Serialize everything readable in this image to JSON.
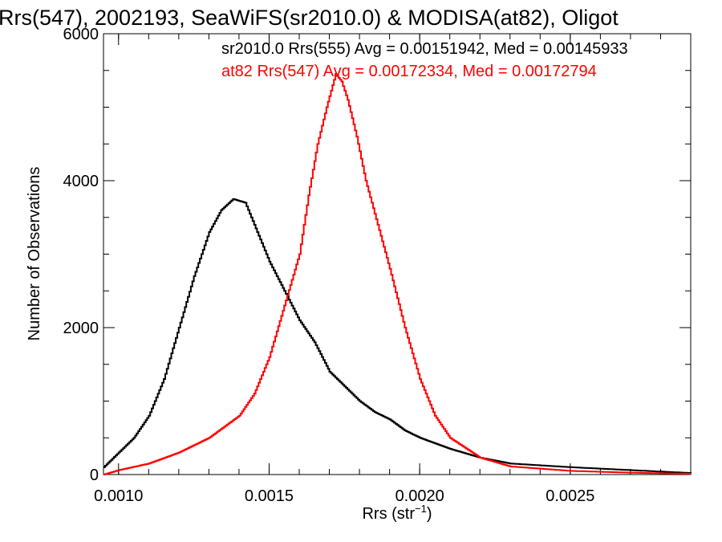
{
  "chart_data": {
    "type": "line",
    "title": "Rrs(547), 2002193, SeaWiFS(sr2010.0) & MODISA(at82), Oligot",
    "xlabel": "Rrs (str",
    "xlabel_sup": "−1",
    "xlabel_close": ")",
    "ylabel": "Number of Observations",
    "xlim": [
      0.00095,
      0.0029
    ],
    "ylim": [
      0,
      6000
    ],
    "xticks": [
      0.001,
      0.0015,
      0.002,
      0.0025
    ],
    "xtick_labels": [
      "0.0010",
      "0.0015",
      "0.0020",
      "0.0025"
    ],
    "yticks": [
      0,
      2000,
      4000,
      6000
    ],
    "ytick_labels": [
      "0",
      "2000",
      "4000",
      "6000"
    ],
    "grid": false,
    "legend_position": "top-right",
    "series": [
      {
        "name": "sr2010.0 Rrs(555) Avg = 0.00151942, Med = 0.00145933",
        "color": "#000000",
        "x": [
          0.00095,
          0.001,
          0.00105,
          0.0011,
          0.00115,
          0.0012,
          0.00125,
          0.0013,
          0.00134,
          0.00138,
          0.00142,
          0.00146,
          0.0015,
          0.00155,
          0.0016,
          0.00165,
          0.0017,
          0.00175,
          0.0018,
          0.00185,
          0.0019,
          0.00195,
          0.002,
          0.0021,
          0.0022,
          0.0023,
          0.0025,
          0.0027,
          0.0029
        ],
        "y": [
          100,
          300,
          500,
          800,
          1300,
          2000,
          2700,
          3300,
          3600,
          3750,
          3700,
          3300,
          2900,
          2500,
          2100,
          1800,
          1400,
          1200,
          1000,
          850,
          750,
          600,
          500,
          350,
          230,
          150,
          100,
          60,
          20
        ]
      },
      {
        "name": "at82 Rrs(547) Avg = 0.00172334, Med = 0.00172794",
        "color": "#ff0000",
        "x": [
          0.00095,
          0.001,
          0.0011,
          0.0012,
          0.0013,
          0.0014,
          0.00145,
          0.0015,
          0.00155,
          0.0016,
          0.00163,
          0.00166,
          0.00169,
          0.00172,
          0.00174,
          0.00176,
          0.00179,
          0.00182,
          0.00186,
          0.0019,
          0.00195,
          0.002,
          0.00205,
          0.0021,
          0.0022,
          0.0023,
          0.0025,
          0.0027,
          0.0029
        ],
        "y": [
          0,
          60,
          150,
          300,
          500,
          800,
          1100,
          1600,
          2300,
          3000,
          3800,
          4500,
          5000,
          5450,
          5350,
          5100,
          4600,
          4000,
          3400,
          2800,
          2000,
          1300,
          800,
          500,
          230,
          110,
          50,
          25,
          10
        ]
      }
    ]
  }
}
